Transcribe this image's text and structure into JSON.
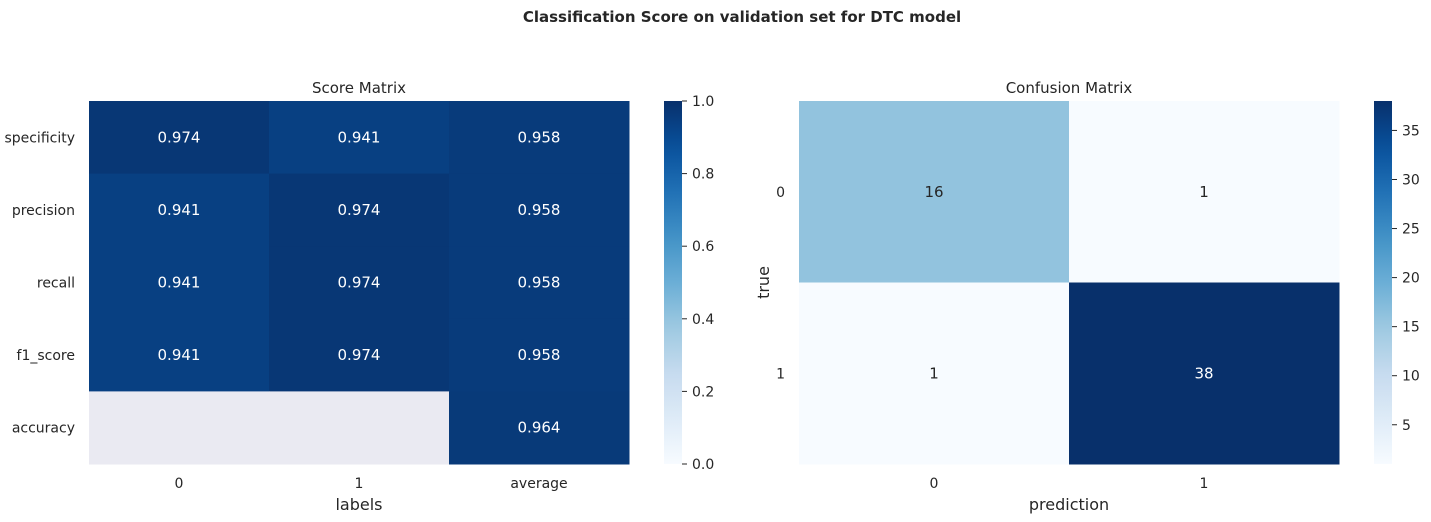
{
  "figure": {
    "title": "Classification Score on validation set for DTC model"
  },
  "colors": {
    "blues_ramp": [
      "#f7fbff",
      "#deebf7",
      "#c6dbef",
      "#9ecae1",
      "#6baed6",
      "#4292c6",
      "#2171b5",
      "#08519c",
      "#08306b"
    ],
    "missing_cell": "#eaeaf2",
    "text_dark": "#262626",
    "text_light": "#ffffff"
  },
  "chart_data": [
    {
      "type": "heatmap",
      "title": "Score Matrix",
      "xlabel": "labels",
      "ylabel": "",
      "x_categories": [
        "0",
        "1",
        "average"
      ],
      "y_categories": [
        "specificity",
        "precision",
        "recall",
        "f1_score",
        "accuracy"
      ],
      "values": [
        [
          0.974,
          0.941,
          0.958
        ],
        [
          0.941,
          0.974,
          0.958
        ],
        [
          0.941,
          0.974,
          0.958
        ],
        [
          0.941,
          0.974,
          0.958
        ],
        [
          null,
          null,
          0.964
        ]
      ],
      "annotations": [
        [
          "0.974",
          "0.941",
          "0.958"
        ],
        [
          "0.941",
          "0.974",
          "0.958"
        ],
        [
          "0.941",
          "0.974",
          "0.958"
        ],
        [
          "0.941",
          "0.974",
          "0.958"
        ],
        [
          "",
          "",
          "0.964"
        ]
      ],
      "colormap": "Blues",
      "vmin": 0.0,
      "vmax": 1.0,
      "colorbar_ticks": [
        "0.0",
        "0.2",
        "0.4",
        "0.6",
        "0.8",
        "1.0"
      ],
      "grid": false
    },
    {
      "type": "heatmap",
      "title": "Confusion Matrix",
      "xlabel": "prediction",
      "ylabel": "true",
      "x_categories": [
        "0",
        "1"
      ],
      "y_categories": [
        "0",
        "1"
      ],
      "values": [
        [
          16,
          1
        ],
        [
          1,
          38
        ]
      ],
      "annotations": [
        [
          "16",
          "1"
        ],
        [
          "1",
          "38"
        ]
      ],
      "colormap": "Blues",
      "vmin": 1,
      "vmax": 38,
      "colorbar_ticks": [
        "5",
        "10",
        "15",
        "20",
        "25",
        "30",
        "35"
      ],
      "grid": false
    }
  ]
}
